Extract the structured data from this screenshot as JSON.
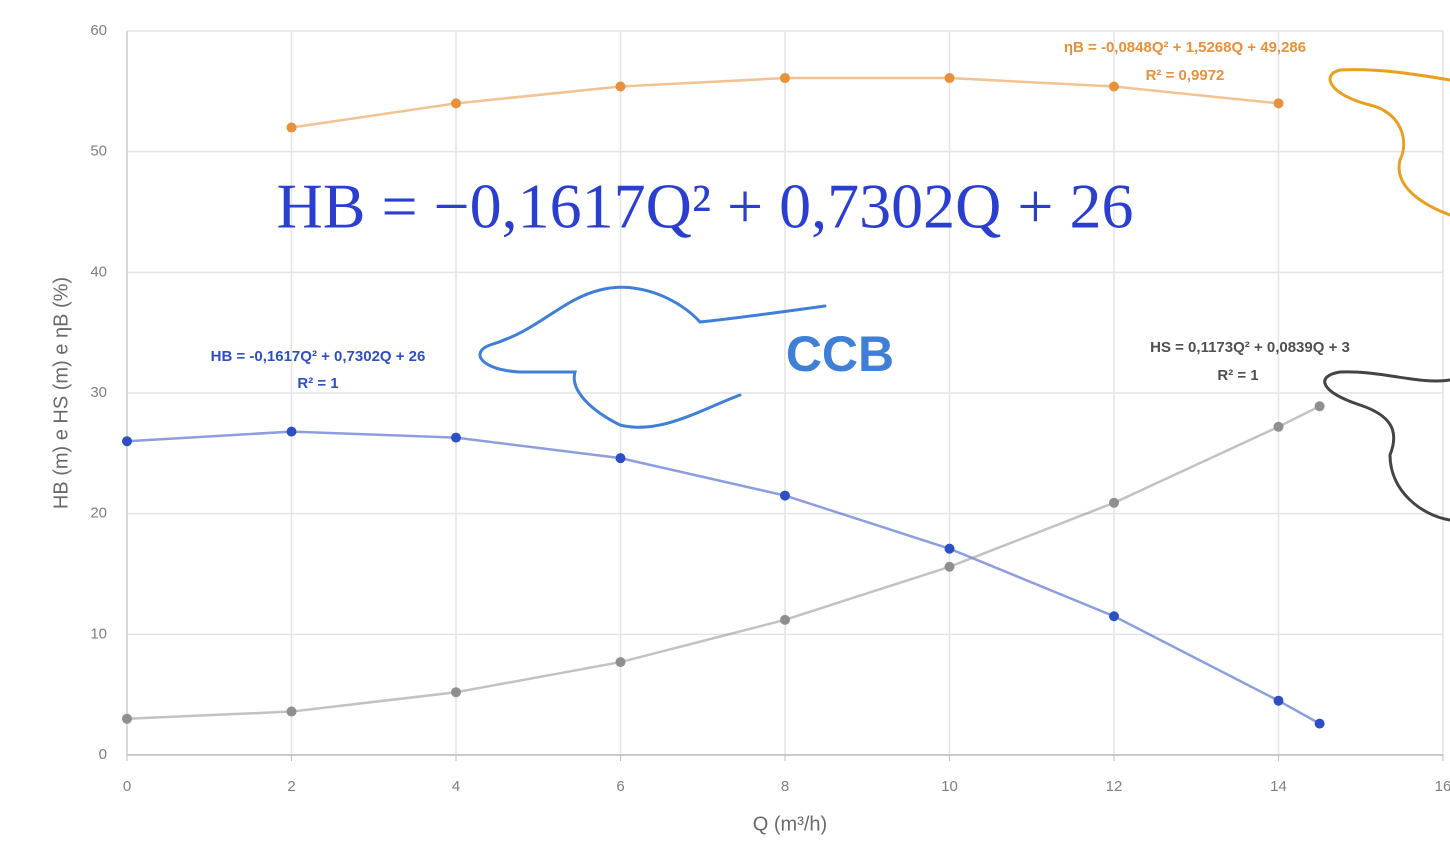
{
  "chart_data": {
    "type": "scatter",
    "x_label": "Q (m³/h)",
    "y_label": "HB (m) e HS (m) e ηB (%)",
    "x": [
      0,
      2,
      4,
      6,
      8,
      10,
      12,
      14,
      14.5
    ],
    "series": [
      {
        "color": "#2e4fc4",
        "values": [
          26.0,
          26.8,
          26.3,
          24.6,
          21.5,
          17.1,
          11.5,
          4.5,
          2.6
        ]
      },
      {
        "color": "#8f8f8f",
        "values": [
          3.0,
          3.6,
          5.2,
          7.7,
          11.2,
          15.6,
          20.9,
          27.2,
          28.9
        ]
      },
      {
        "color": "#e8903a",
        "values": [
          null,
          52.0,
          54.0,
          55.4,
          56.1,
          56.1,
          55.4,
          54.0,
          null
        ]
      }
    ],
    "xlim": [
      0,
      16
    ],
    "xticks": [
      0,
      2,
      4,
      6,
      8,
      10,
      12,
      14,
      16
    ],
    "ylim": [
      0,
      60
    ],
    "yticks": [
      0,
      10,
      20,
      30,
      40,
      50,
      60
    ],
    "grid": true,
    "annotations": [
      "ηB = -0,0848Q² + 1,5268Q + 49,286",
      "R² = 0,9972",
      "HB = -0,1617Q² + 0,7302Q + 26",
      "R² = 1",
      "HS = 0,1173Q² + 0,0839Q + 3",
      "R² = 1",
      "HB = −0,1617Q² + 0,7302Q + 26",
      "CCB"
    ]
  }
}
